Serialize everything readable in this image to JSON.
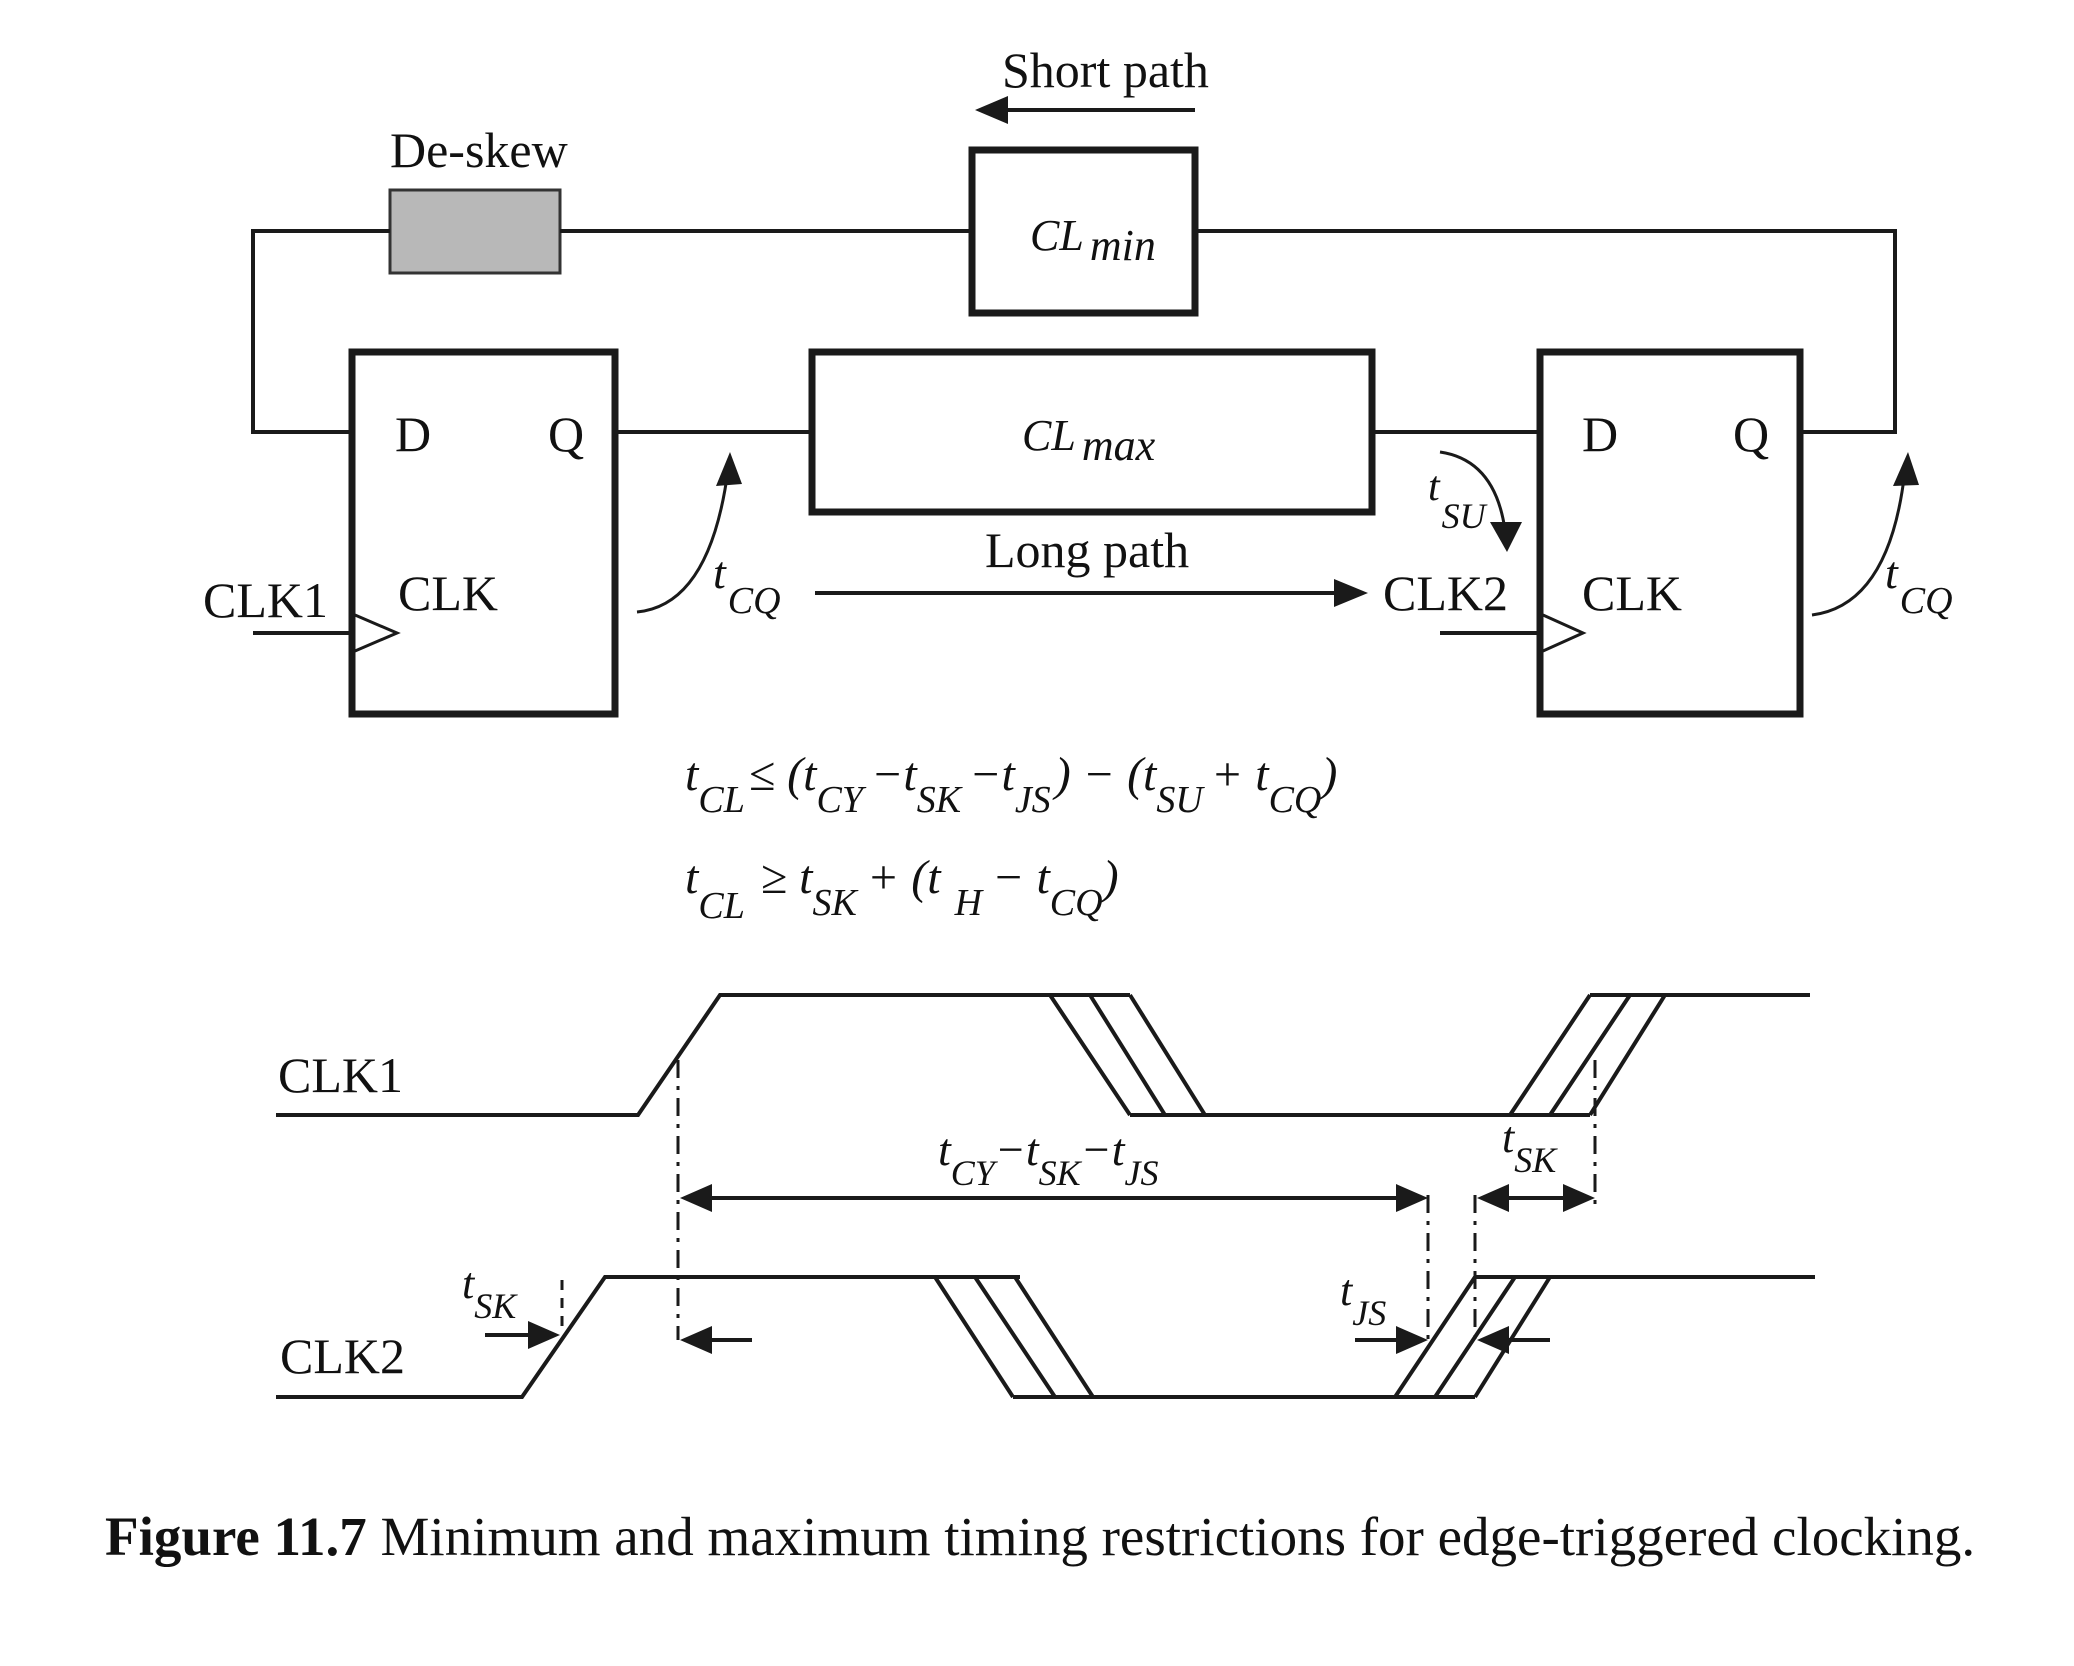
{
  "labels": {
    "short_path": "Short path",
    "de_skew": "De-skew",
    "cl_min": {
      "base": "CL",
      "sub": "min"
    },
    "cl_max": {
      "base": "CL",
      "sub": "max"
    },
    "long_path": "Long path",
    "ff1": {
      "d": "D",
      "q": "Q",
      "clk": "CLK",
      "clk_input": "CLK1"
    },
    "ff2": {
      "d": "D",
      "q": "Q",
      "clk": "CLK",
      "clk_input": "CLK2"
    },
    "t": "t",
    "cq": "CQ",
    "su": "SU"
  },
  "equations": {
    "max": {
      "lhs_t": "t",
      "lhs_sub": "CL",
      "rel": "≤ (t",
      "cy": "CY",
      "m1": "−t",
      "sk": "SK",
      "m2": "−t",
      "js": "JS",
      "mid": ") − (t",
      "su": "SU",
      "plus": "+ t",
      "cq": "CQ",
      "close": ")"
    },
    "min": {
      "lhs_t": "t",
      "lhs_sub": "CL",
      "rel": "≥ t",
      "sk": "SK",
      "plus": "+ (t",
      "h": "H",
      "minus": "− t",
      "cq": "CQ",
      "close": ")"
    }
  },
  "timing": {
    "clk1": "CLK1",
    "clk2": "CLK2",
    "tcy": {
      "t1": "t",
      "cy": "CY",
      "t2": "−t",
      "sk": "SK",
      "t3": "−t",
      "js": "JS"
    },
    "tsk_top": {
      "t": "t",
      "sub": "SK"
    },
    "tsk_left": {
      "t": "t",
      "sub": "SK"
    },
    "tjs": {
      "t": "t",
      "sub": "JS"
    }
  },
  "caption": {
    "number": "Figure 11.7",
    "text": " Minimum and maximum timing restrictions for edge-triggered clocking."
  }
}
